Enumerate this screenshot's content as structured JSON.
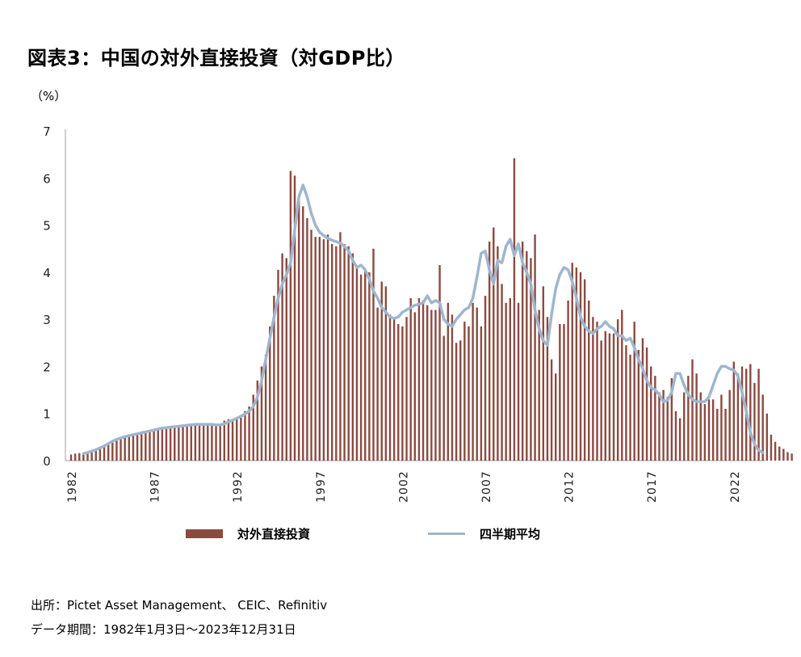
{
  "title": "図表3：中国の対外直接投資（対GDP比）",
  "unit_label": "（%）",
  "legend": {
    "bar_label": "対外直接投資",
    "line_label": "四半期平均"
  },
  "footer": {
    "source": "出所：Pictet Asset Management、 CEIC、Refinitiv",
    "period": "データ期間：1982年1月3日～2023年12月31日"
  },
  "colors": {
    "bar": "#8b4a40",
    "line": "#9fb6cf",
    "axis": "#bfbfbf"
  },
  "chart_data": {
    "type": "bar",
    "title": "図表3：中国の対外直接投資（対GDP比）",
    "xlabel": "",
    "ylabel": "（%）",
    "ylim": [
      0,
      7
    ],
    "yticks": [
      0,
      1,
      2,
      3,
      4,
      5,
      6,
      7
    ],
    "xticks": [
      "1982",
      "1987",
      "1992",
      "1997",
      "2002",
      "2007",
      "2012",
      "2017",
      "2022"
    ],
    "frequency": "quarterly",
    "start": "1982Q1",
    "end": "2023Q4",
    "grid": false,
    "legend_position": "bottom",
    "series": [
      {
        "name": "対外直接投資",
        "type": "bar",
        "values": [
          0.13,
          0.15,
          0.16,
          0.16,
          0.17,
          0.2,
          0.23,
          0.27,
          0.3,
          0.35,
          0.4,
          0.45,
          0.48,
          0.5,
          0.52,
          0.53,
          0.55,
          0.57,
          0.59,
          0.62,
          0.65,
          0.67,
          0.69,
          0.7,
          0.71,
          0.73,
          0.74,
          0.75,
          0.76,
          0.77,
          0.77,
          0.77,
          0.77,
          0.76,
          0.76,
          0.76,
          0.78,
          0.85,
          0.88,
          0.88,
          0.92,
          0.97,
          1.05,
          1.15,
          1.4,
          1.7,
          2.0,
          2.25,
          2.85,
          3.5,
          4.05,
          4.4,
          4.3,
          6.15,
          6.05,
          5.55,
          5.4,
          5.15,
          4.9,
          4.75,
          4.75,
          4.7,
          4.8,
          4.6,
          4.55,
          4.85,
          4.6,
          4.55,
          4.4,
          4.1,
          3.95,
          4.05,
          4.0,
          4.5,
          3.25,
          3.8,
          3.7,
          3.1,
          3.0,
          2.9,
          2.85,
          3.05,
          3.45,
          3.15,
          3.45,
          3.4,
          3.3,
          3.2,
          3.2,
          4.15,
          2.65,
          3.35,
          3.1,
          2.5,
          2.55,
          2.95,
          2.85,
          3.35,
          3.25,
          2.85,
          3.5,
          4.65,
          4.95,
          4.55,
          3.75,
          3.35,
          3.45,
          6.42,
          3.35,
          4.65,
          4.45,
          4.3,
          4.8,
          3.2,
          3.7,
          3.05,
          2.15,
          1.85,
          2.9,
          2.9,
          3.4,
          4.2,
          4.1,
          4.0,
          3.85,
          3.4,
          3.05,
          2.95,
          2.55,
          2.75,
          2.7,
          2.7,
          3.0,
          3.2,
          2.45,
          2.25,
          2.95,
          2.35,
          2.6,
          2.4,
          2.0,
          1.8,
          1.45,
          1.5,
          1.35,
          1.75,
          1.05,
          0.9,
          1.45,
          1.8,
          2.15,
          1.85,
          1.45,
          1.2,
          1.3,
          1.3,
          1.1,
          1.4,
          1.1,
          1.5,
          2.1,
          1.85,
          2.0,
          1.95,
          2.05,
          1.65,
          1.95,
          1.4,
          1.0,
          0.55,
          0.4,
          0.3,
          0.25,
          0.18,
          0.15
        ]
      },
      {
        "name": "四半期平均",
        "type": "line",
        "start_index": 3,
        "values": [
          0.15,
          0.17,
          0.2,
          0.23,
          0.27,
          0.31,
          0.36,
          0.41,
          0.45,
          0.48,
          0.51,
          0.53,
          0.55,
          0.57,
          0.59,
          0.61,
          0.63,
          0.65,
          0.67,
          0.69,
          0.7,
          0.71,
          0.72,
          0.73,
          0.74,
          0.75,
          0.76,
          0.77,
          0.77,
          0.77,
          0.77,
          0.77,
          0.76,
          0.76,
          0.78,
          0.82,
          0.86,
          0.9,
          0.94,
          0.99,
          1.05,
          1.15,
          1.35,
          1.7,
          2.15,
          2.6,
          3.05,
          3.45,
          3.75,
          3.95,
          4.2,
          4.9,
          5.6,
          5.85,
          5.6,
          5.25,
          5.0,
          4.85,
          4.78,
          4.72,
          4.68,
          4.65,
          4.62,
          4.55,
          4.45,
          4.25,
          4.1,
          4.15,
          4.05,
          3.85,
          3.6,
          3.45,
          3.25,
          3.15,
          3.05,
          3.02,
          3.05,
          3.15,
          3.2,
          3.25,
          3.3,
          3.32,
          3.35,
          3.5,
          3.35,
          3.4,
          3.35,
          3.0,
          2.9,
          2.85,
          3.0,
          3.1,
          3.2,
          3.25,
          3.45,
          3.9,
          4.4,
          4.45,
          4.05,
          3.75,
          4.25,
          4.2,
          4.55,
          4.7,
          4.35,
          4.6,
          4.2,
          4.0,
          3.75,
          3.2,
          2.8,
          2.55,
          2.45,
          3.1,
          3.65,
          3.95,
          4.1,
          4.05,
          3.8,
          3.45,
          3.05,
          2.85,
          2.75,
          2.7,
          2.8,
          2.85,
          2.95,
          2.85,
          2.8,
          2.65,
          2.65,
          2.55,
          2.6,
          2.4,
          2.15,
          1.95,
          1.7,
          1.55,
          1.5,
          1.4,
          1.25,
          1.28,
          1.45,
          1.85,
          1.85,
          1.6,
          1.4,
          1.3,
          1.25,
          1.25,
          1.25,
          1.35,
          1.6,
          1.85,
          2.0,
          2.0,
          1.95,
          1.92,
          1.8,
          1.45,
          1.05,
          0.6,
          0.35,
          0.22,
          0.17
        ]
      }
    ]
  }
}
